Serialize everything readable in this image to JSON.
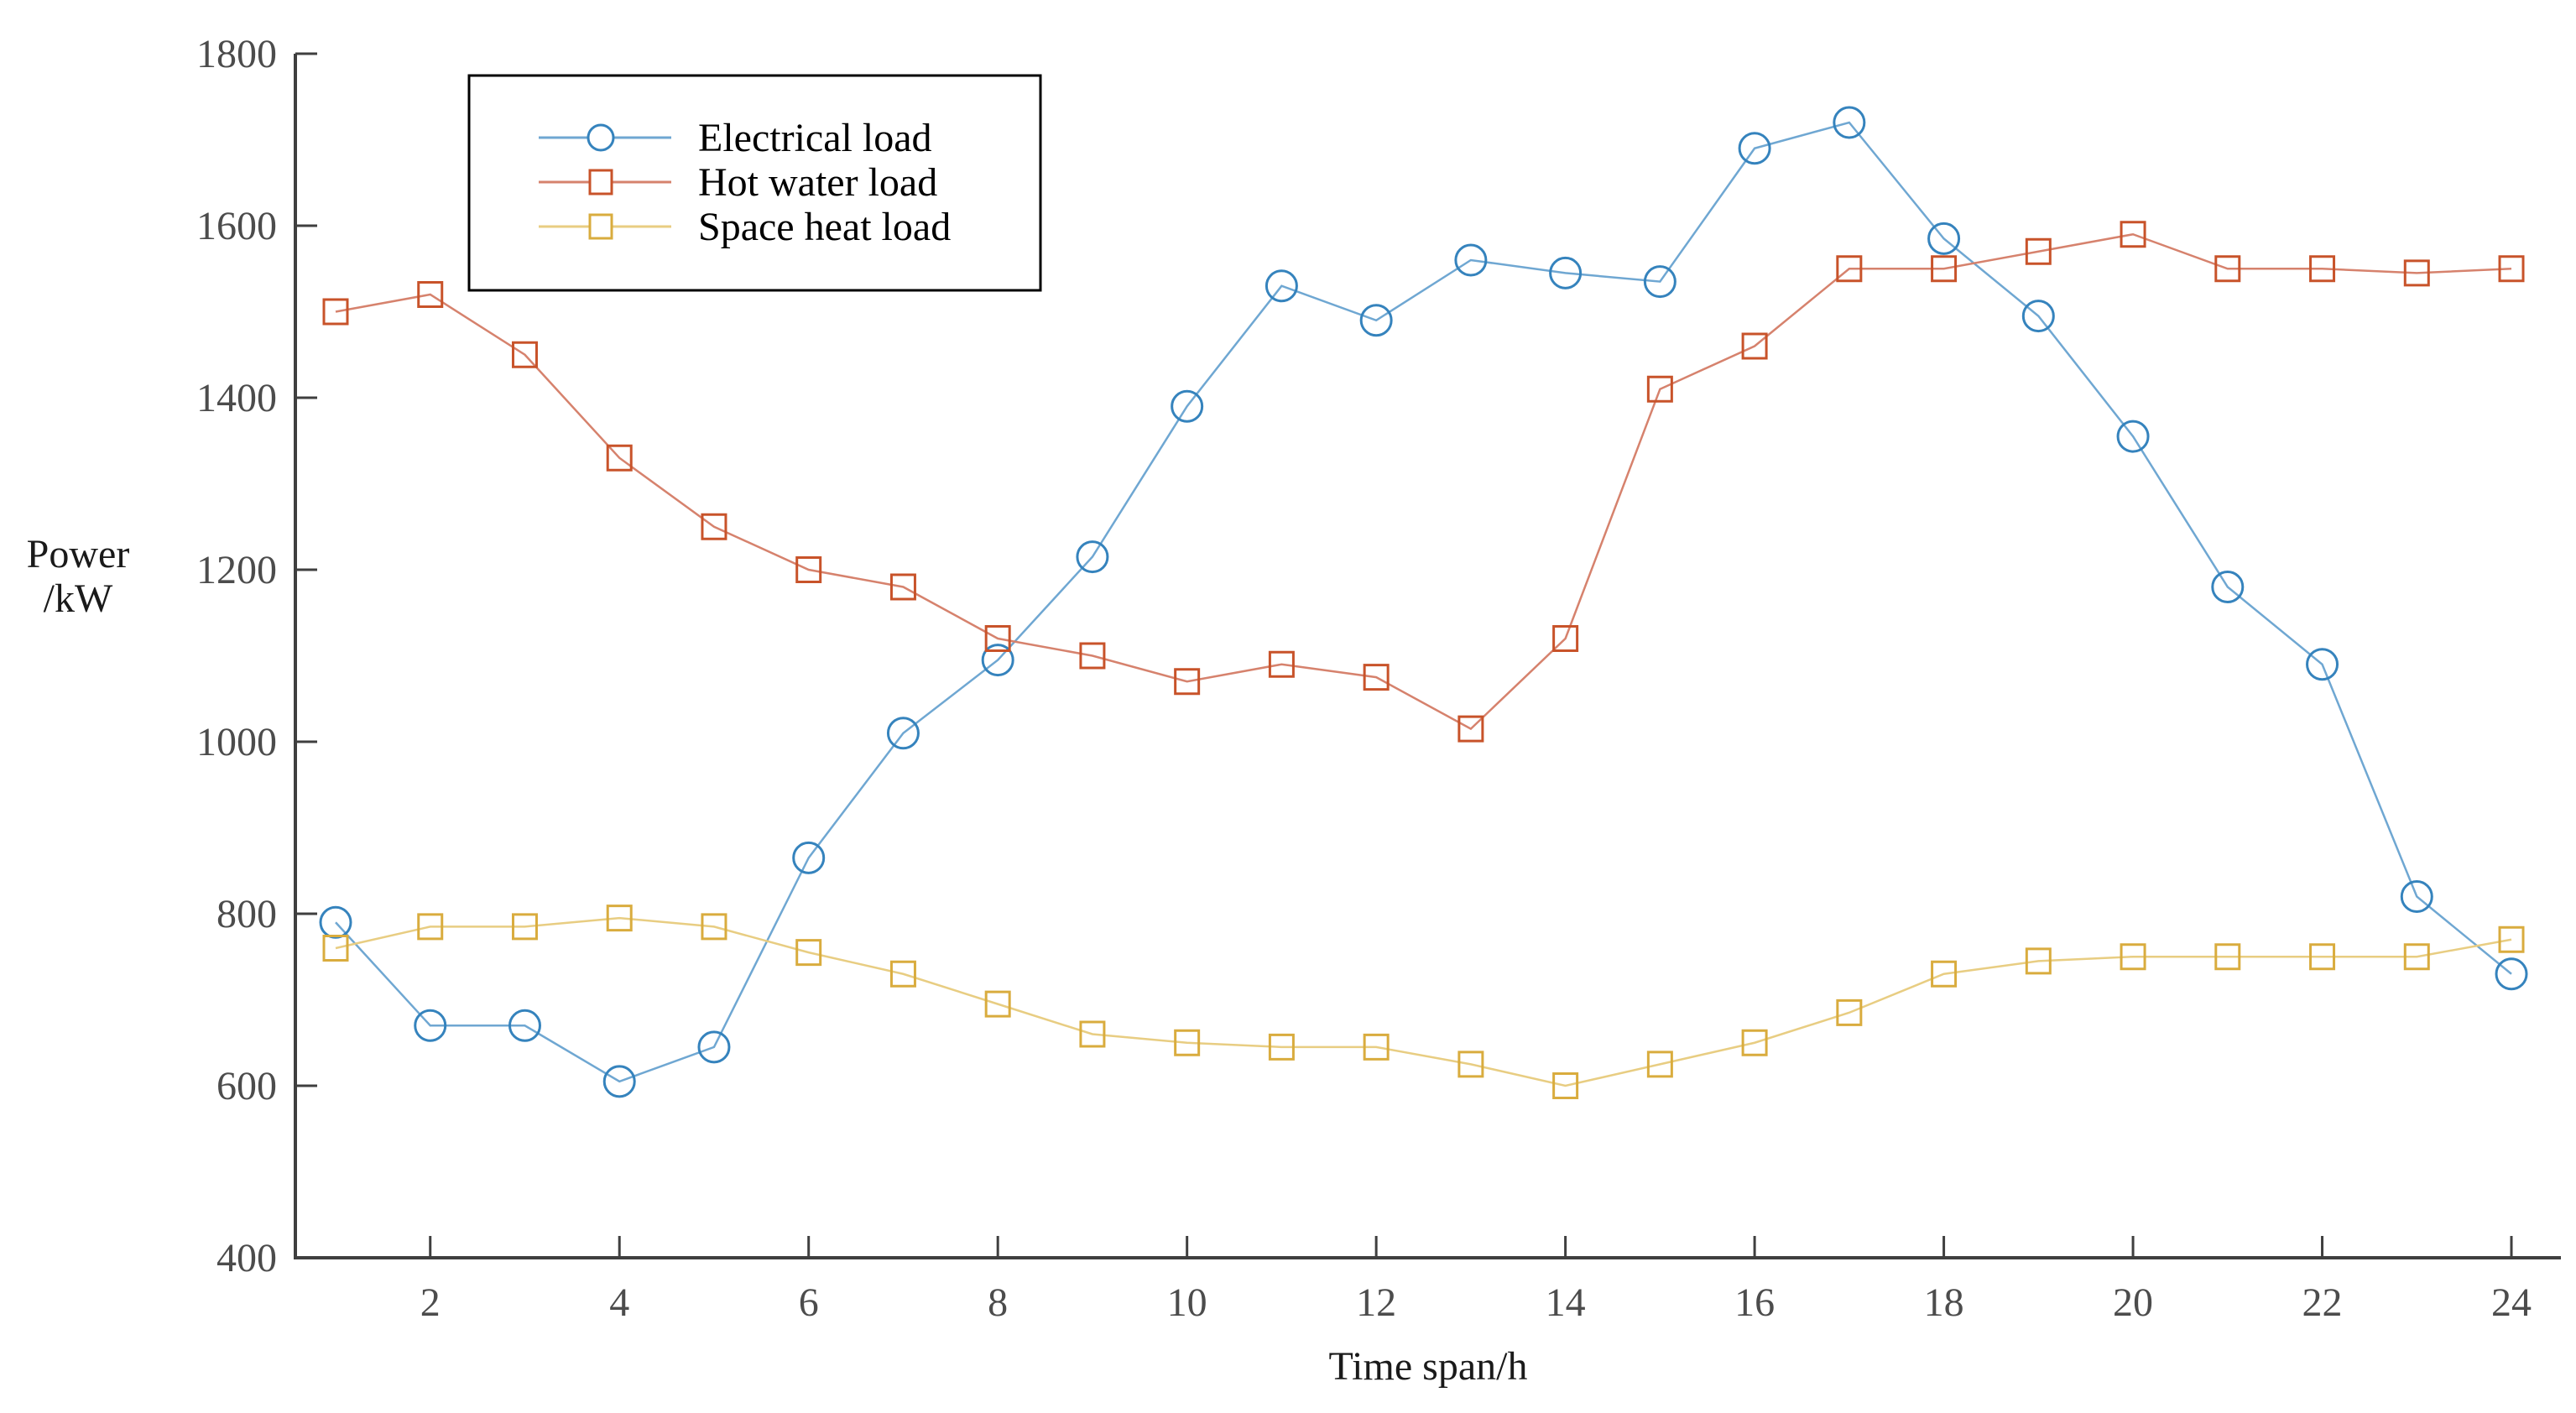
{
  "chart_data": {
    "type": "line",
    "title": "",
    "xlabel": "Time span/h",
    "ylabel_lines": [
      "Power",
      "/kW"
    ],
    "xlim": [
      0.5,
      24.5
    ],
    "ylim": [
      400,
      1800
    ],
    "grid": false,
    "legend_position": "top-left-inside",
    "x_ticks": [
      2,
      4,
      6,
      8,
      10,
      12,
      14,
      16,
      18,
      20,
      22,
      24
    ],
    "x_tick_labels": [
      "2",
      "4",
      "6",
      "8",
      "10",
      "12",
      "14",
      "16",
      "18",
      "20",
      "22",
      "24"
    ],
    "y_ticks": [
      400,
      600,
      800,
      1000,
      1200,
      1400,
      1600,
      1800
    ],
    "y_tick_labels": [
      "400",
      "600",
      "800",
      "1000",
      "1200",
      "1400",
      "1600",
      "1800"
    ],
    "x": [
      1,
      2,
      3,
      4,
      5,
      6,
      7,
      8,
      9,
      10,
      11,
      12,
      13,
      14,
      15,
      16,
      17,
      18,
      19,
      20,
      21,
      22,
      23,
      24
    ],
    "series": [
      {
        "name": "Electrical load",
        "marker": "circle",
        "line_color": "#6fa7d2",
        "marker_color": "#3583bd",
        "values": [
          790,
          670,
          670,
          605,
          645,
          865,
          1010,
          1095,
          1215,
          1390,
          1530,
          1490,
          1560,
          1545,
          1535,
          1690,
          1720,
          1585,
          1495,
          1355,
          1180,
          1090,
          820,
          730
        ]
      },
      {
        "name": "Hot water load",
        "marker": "square",
        "line_color": "#d6826d",
        "marker_color": "#c8532a",
        "values": [
          1500,
          1520,
          1450,
          1330,
          1250,
          1200,
          1180,
          1120,
          1100,
          1070,
          1090,
          1075,
          1015,
          1120,
          1410,
          1460,
          1550,
          1550,
          1570,
          1590,
          1550,
          1550,
          1545,
          1550
        ]
      },
      {
        "name": "Space heat load",
        "marker": "square",
        "line_color": "#e8cd82",
        "marker_color": "#d9ac3e",
        "values": [
          760,
          785,
          785,
          795,
          785,
          755,
          730,
          695,
          660,
          650,
          645,
          645,
          625,
          600,
          625,
          650,
          685,
          730,
          745,
          750,
          750,
          750,
          750,
          770
        ]
      }
    ],
    "axis_color": "#3f3f3f",
    "tick_label_color": "#4c4c4c",
    "text_color": "#1a1a1a",
    "legend_border_color": "#000000",
    "background_color": "#ffffff"
  }
}
